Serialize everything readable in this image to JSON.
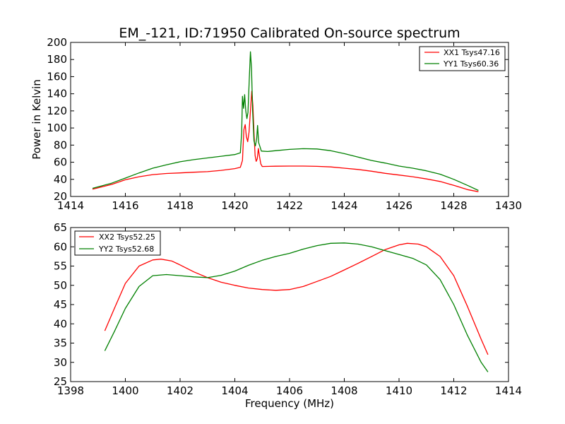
{
  "chart_data": [
    {
      "type": "line",
      "title": "EM_-121, ID:71950 Calibrated On-source spectrum",
      "xlabel": "",
      "ylabel": "Power in Kelvin",
      "xlim": [
        1414,
        1430
      ],
      "ylim": [
        20,
        200
      ],
      "xticks": [
        1414,
        1416,
        1418,
        1420,
        1422,
        1424,
        1426,
        1428,
        1430
      ],
      "yticks": [
        20,
        40,
        60,
        80,
        100,
        120,
        140,
        160,
        180,
        200
      ],
      "grid": false,
      "legend_position": "top-right",
      "series": [
        {
          "name": "XX1 Tsys47.16",
          "color": "#ff0000",
          "points": [
            [
              1414.8,
              28.5
            ],
            [
              1415.5,
              34
            ],
            [
              1416,
              39.5
            ],
            [
              1416.5,
              43
            ],
            [
              1417,
              45.5
            ],
            [
              1417.5,
              46.8
            ],
            [
              1418,
              47.5
            ],
            [
              1418.5,
              48.3
            ],
            [
              1419,
              49
            ],
            [
              1419.5,
              50.5
            ],
            [
              1420,
              52.5
            ],
            [
              1420.2,
              54
            ],
            [
              1420.28,
              62
            ],
            [
              1420.33,
              98
            ],
            [
              1420.38,
              104
            ],
            [
              1420.42,
              90
            ],
            [
              1420.47,
              84
            ],
            [
              1420.52,
              95
            ],
            [
              1420.57,
              120
            ],
            [
              1420.62,
              143
            ],
            [
              1420.66,
              126
            ],
            [
              1420.7,
              95
            ],
            [
              1420.74,
              68
            ],
            [
              1420.78,
              61
            ],
            [
              1420.82,
              64
            ],
            [
              1420.86,
              76
            ],
            [
              1420.9,
              67
            ],
            [
              1420.95,
              58
            ],
            [
              1421,
              55
            ],
            [
              1421.5,
              55.3
            ],
            [
              1422,
              55.5
            ],
            [
              1422.5,
              55.5
            ],
            [
              1423,
              55.2
            ],
            [
              1423.5,
              54.5
            ],
            [
              1424,
              53
            ],
            [
              1424.5,
              51.5
            ],
            [
              1425,
              49.5
            ],
            [
              1425.5,
              47
            ],
            [
              1426,
              45
            ],
            [
              1426.5,
              43
            ],
            [
              1427,
              40.5
            ],
            [
              1427.5,
              37.5
            ],
            [
              1428,
              33
            ],
            [
              1428.5,
              28
            ],
            [
              1428.9,
              25.5
            ]
          ]
        },
        {
          "name": "YY1 Tsys60.36",
          "color": "#008000",
          "points": [
            [
              1414.8,
              29.5
            ],
            [
              1415.5,
              35.5
            ],
            [
              1416,
              41.5
            ],
            [
              1416.5,
              47.5
            ],
            [
              1417,
              53
            ],
            [
              1417.5,
              57
            ],
            [
              1418,
              60.5
            ],
            [
              1418.5,
              63
            ],
            [
              1419,
              65
            ],
            [
              1419.5,
              67
            ],
            [
              1420,
              69
            ],
            [
              1420.2,
              71
            ],
            [
              1420.25,
              95
            ],
            [
              1420.28,
              137
            ],
            [
              1420.32,
              123
            ],
            [
              1420.36,
              139
            ],
            [
              1420.4,
              120
            ],
            [
              1420.44,
              111
            ],
            [
              1420.48,
              118
            ],
            [
              1420.53,
              158
            ],
            [
              1420.57,
              189
            ],
            [
              1420.61,
              170
            ],
            [
              1420.65,
              120
            ],
            [
              1420.7,
              85
            ],
            [
              1420.75,
              79
            ],
            [
              1420.8,
              88
            ],
            [
              1420.83,
              103
            ],
            [
              1420.87,
              83
            ],
            [
              1420.92,
              78
            ],
            [
              1420.97,
              73
            ],
            [
              1421.2,
              72.5
            ],
            [
              1421.5,
              73.5
            ],
            [
              1422,
              75
            ],
            [
              1422.5,
              75.8
            ],
            [
              1423,
              75.5
            ],
            [
              1423.5,
              73.5
            ],
            [
              1424,
              70
            ],
            [
              1424.5,
              66
            ],
            [
              1425,
              62
            ],
            [
              1425.5,
              59
            ],
            [
              1426,
              55.5
            ],
            [
              1426.5,
              53
            ],
            [
              1427,
              50
            ],
            [
              1427.5,
              46
            ],
            [
              1428,
              40
            ],
            [
              1428.5,
              33
            ],
            [
              1428.9,
              27
            ]
          ]
        }
      ]
    },
    {
      "type": "line",
      "title": "",
      "xlabel": "Frequency (MHz)",
      "ylabel": "",
      "xlim": [
        1398,
        1414
      ],
      "ylim": [
        25,
        65
      ],
      "xticks": [
        1398,
        1400,
        1402,
        1404,
        1406,
        1408,
        1410,
        1412,
        1414
      ],
      "yticks": [
        25,
        30,
        35,
        40,
        45,
        50,
        55,
        60,
        65
      ],
      "grid": false,
      "legend_position": "top-left",
      "series": [
        {
          "name": "XX2 Tsys52.25",
          "color": "#ff0000",
          "points": [
            [
              1399.25,
              38.2
            ],
            [
              1399.6,
              44
            ],
            [
              1400,
              50.5
            ],
            [
              1400.5,
              55
            ],
            [
              1401,
              56.6
            ],
            [
              1401.3,
              56.8
            ],
            [
              1401.7,
              56.3
            ],
            [
              1402,
              55.3
            ],
            [
              1402.5,
              53.5
            ],
            [
              1403,
              52
            ],
            [
              1403.5,
              50.8
            ],
            [
              1404,
              50
            ],
            [
              1404.5,
              49.3
            ],
            [
              1405,
              48.9
            ],
            [
              1405.5,
              48.7
            ],
            [
              1406,
              48.9
            ],
            [
              1406.5,
              49.7
            ],
            [
              1407,
              51
            ],
            [
              1407.5,
              52.3
            ],
            [
              1408,
              54
            ],
            [
              1408.5,
              55.7
            ],
            [
              1409,
              57.5
            ],
            [
              1409.5,
              59.3
            ],
            [
              1410,
              60.5
            ],
            [
              1410.3,
              60.9
            ],
            [
              1410.7,
              60.7
            ],
            [
              1411,
              60
            ],
            [
              1411.5,
              57.5
            ],
            [
              1412,
              52.5
            ],
            [
              1412.5,
              44.5
            ],
            [
              1413,
              36
            ],
            [
              1413.25,
              32
            ]
          ]
        },
        {
          "name": "YY2 Tsys52.68",
          "color": "#008000",
          "points": [
            [
              1399.25,
              33
            ],
            [
              1399.6,
              38
            ],
            [
              1400,
              44
            ],
            [
              1400.5,
              49.7
            ],
            [
              1401,
              52.5
            ],
            [
              1401.5,
              52.8
            ],
            [
              1402,
              52.5
            ],
            [
              1402.5,
              52.2
            ],
            [
              1403,
              52
            ],
            [
              1403.5,
              52.6
            ],
            [
              1404,
              53.7
            ],
            [
              1404.5,
              55.2
            ],
            [
              1405,
              56.5
            ],
            [
              1405.5,
              57.5
            ],
            [
              1406,
              58.3
            ],
            [
              1406.5,
              59.4
            ],
            [
              1407,
              60.3
            ],
            [
              1407.5,
              60.9
            ],
            [
              1408,
              61
            ],
            [
              1408.5,
              60.7
            ],
            [
              1409,
              60
            ],
            [
              1409.5,
              59
            ],
            [
              1410,
              58
            ],
            [
              1410.5,
              57
            ],
            [
              1411,
              55.3
            ],
            [
              1411.5,
              51.5
            ],
            [
              1412,
              45
            ],
            [
              1412.5,
              37
            ],
            [
              1413,
              30
            ],
            [
              1413.25,
              27.5
            ]
          ]
        }
      ]
    }
  ]
}
